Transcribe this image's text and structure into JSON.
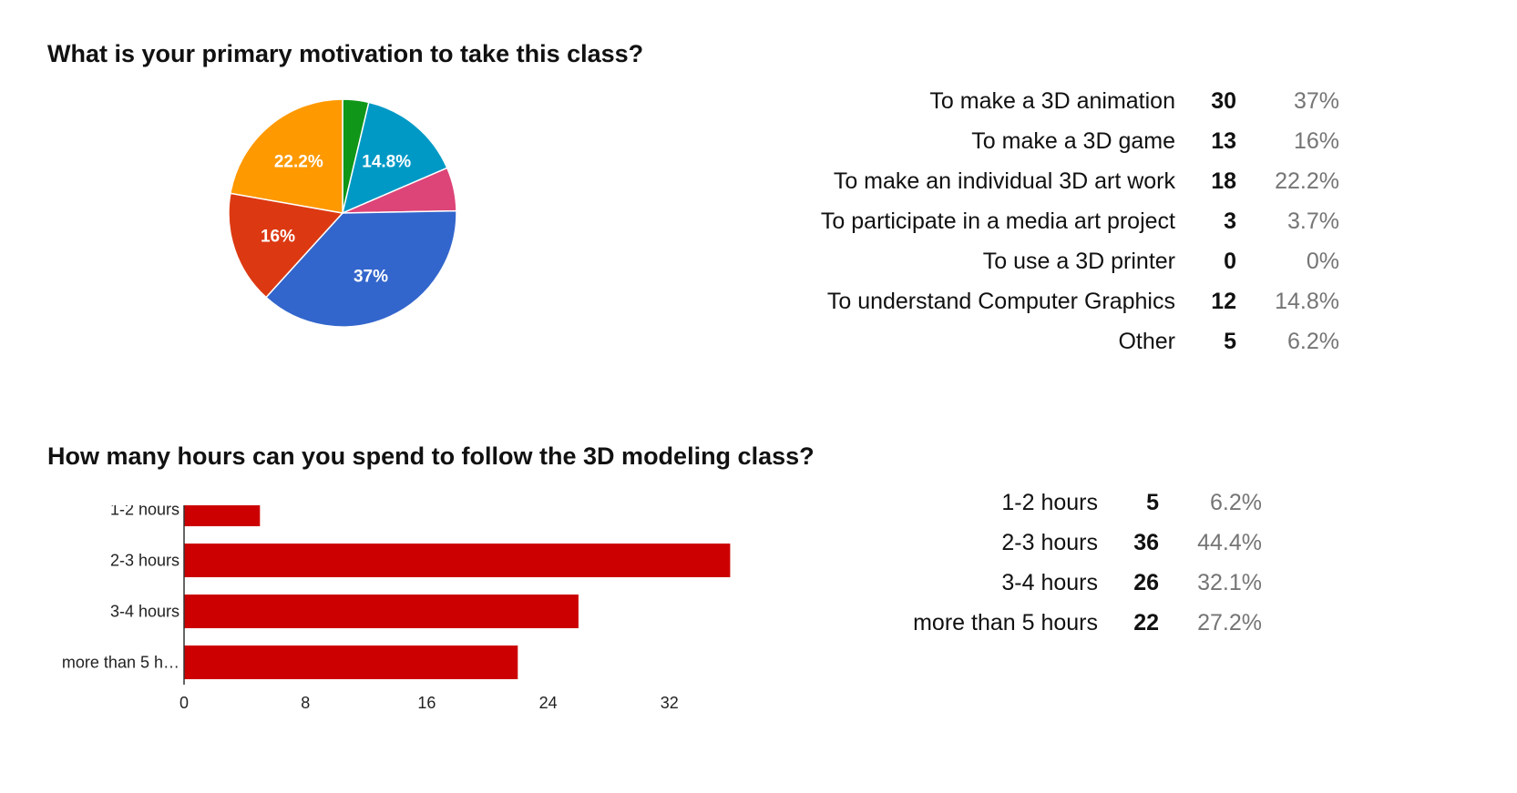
{
  "q1": {
    "title": "What is your primary motivation to take this class?",
    "rows": [
      {
        "label": "To make a 3D animation",
        "count": "30",
        "pct": "37%"
      },
      {
        "label": "To make a 3D game",
        "count": "13",
        "pct": "16%"
      },
      {
        "label": "To make an individual 3D art work",
        "count": "18",
        "pct": "22.2%"
      },
      {
        "label": "To participate in a media art project",
        "count": "3",
        "pct": "3.7%"
      },
      {
        "label": "To use a 3D printer",
        "count": "0",
        "pct": "0%"
      },
      {
        "label": "To understand Computer Graphics",
        "count": "12",
        "pct": "14.8%"
      },
      {
        "label": "Other",
        "count": "5",
        "pct": "6.2%"
      }
    ]
  },
  "q2": {
    "title": "How many hours can you spend to follow the 3D modeling class?",
    "rows": [
      {
        "label": "1-2 hours",
        "count": "5",
        "pct": "6.2%"
      },
      {
        "label": "2-3 hours",
        "count": "36",
        "pct": "44.4%"
      },
      {
        "label": "3-4 hours",
        "count": "26",
        "pct": "32.1%"
      },
      {
        "label": "more than 5 hours",
        "count": "22",
        "pct": "27.2%"
      }
    ]
  },
  "chart_data": [
    {
      "type": "pie",
      "title": "What is your primary motivation to take this class?",
      "categories": [
        "To make a 3D animation",
        "To make a 3D game",
        "To make an individual 3D art work",
        "To participate in a media art project",
        "To use a 3D printer",
        "To understand Computer Graphics",
        "Other"
      ],
      "values": [
        30,
        13,
        18,
        3,
        0,
        12,
        5
      ],
      "slice_labels": [
        "37%",
        "16%",
        "22.2%",
        "",
        "",
        "14.8%",
        ""
      ],
      "colors": [
        "#3366cc",
        "#dc3912",
        "#ff9900",
        "#109618",
        "#990099",
        "#0099c6",
        "#dd4477"
      ]
    },
    {
      "type": "bar",
      "orientation": "horizontal",
      "title": "How many hours can you spend to follow the 3D modeling class?",
      "categories": [
        "1-2 hours",
        "2-3 hours",
        "3-4 hours",
        "more than 5 hours"
      ],
      "category_labels": [
        "1-2 hours",
        "2-3 hours",
        "3-4 hours",
        "more than 5 h…"
      ],
      "values": [
        5,
        36,
        26,
        22
      ],
      "xlim": [
        0,
        36
      ],
      "xticks": [
        "0",
        "8",
        "16",
        "24",
        "32"
      ],
      "color": "#cc0000",
      "grid": false
    }
  ]
}
